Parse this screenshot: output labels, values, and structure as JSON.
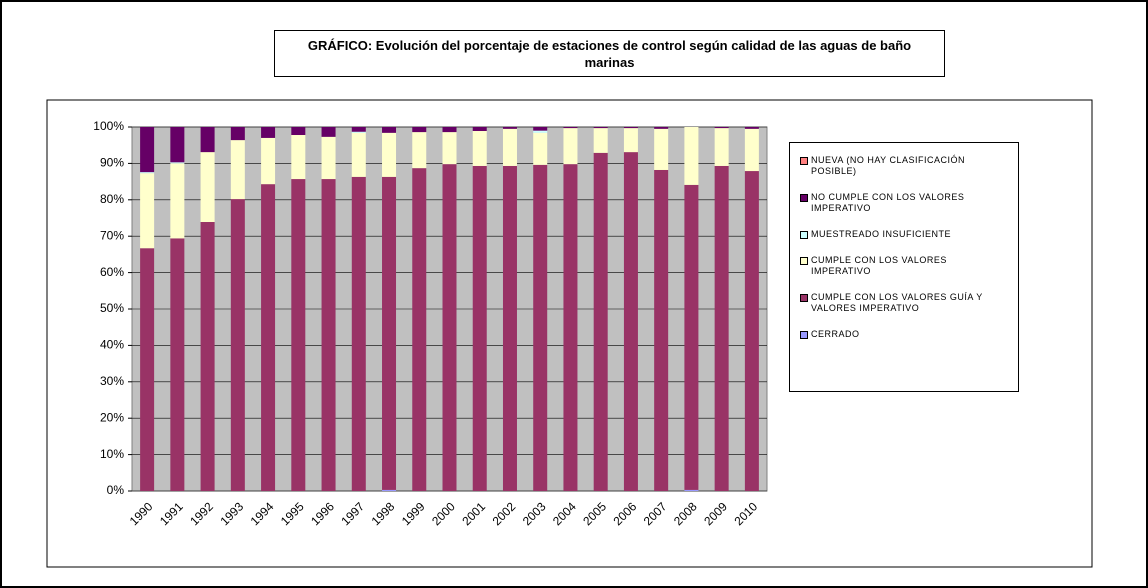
{
  "chart_data": {
    "type": "stacked_bar",
    "title": "GRÁFICO: Evolución del porcentaje de estaciones de control según calidad de las aguas de baño marinas",
    "categories": [
      "1990",
      "1991",
      "1992",
      "1993",
      "1994",
      "1995",
      "1996",
      "1997",
      "1998",
      "1999",
      "2000",
      "2001",
      "2002",
      "2003",
      "2004",
      "2005",
      "2006",
      "2007",
      "2008",
      "2009",
      "2010"
    ],
    "series": [
      {
        "name": "CERRADO",
        "color": "#9999ff",
        "values": [
          0,
          0,
          0,
          0,
          0,
          0,
          0,
          0,
          0.3,
          0,
          0,
          0,
          0,
          0,
          0,
          0,
          0,
          0,
          0.3,
          0,
          0
        ]
      },
      {
        "name": "CUMPLE CON LOS VALORES GUÍA Y VALORES IMPERATIVO",
        "color": "#993366",
        "values": [
          66.7,
          69.4,
          73.9,
          80.2,
          84.3,
          85.7,
          85.7,
          86.3,
          86,
          88.7,
          89.8,
          89.3,
          89.3,
          89.6,
          89.8,
          92.9,
          93.1,
          88.2,
          83.8,
          89.3,
          87.9
        ]
      },
      {
        "name": "CUMPLE CON LOS VALORES IMPERATIVO",
        "color": "#ffffcc",
        "values": [
          20.6,
          20.6,
          19.2,
          16.2,
          12.7,
          12.1,
          11.6,
          12.1,
          12.1,
          9.9,
          8.8,
          9.6,
          10.2,
          8.8,
          9.9,
          6.8,
          6.6,
          11.3,
          15.9,
          10.4,
          11.6
        ]
      },
      {
        "name": "MUESTREADO INSUFICIENTE",
        "color": "#ccffff",
        "values": [
          0.3,
          0.3,
          0,
          0,
          0,
          0,
          0,
          0.3,
          0,
          0,
          0,
          0,
          0,
          0.6,
          0,
          0,
          0,
          0,
          0,
          0,
          0
        ]
      },
      {
        "name": "NO CUMPLE CON LOS VALORES IMPERATIVO",
        "color": "#660066",
        "values": [
          12.4,
          9.7,
          6.9,
          3.6,
          3,
          2.2,
          2.7,
          1.3,
          1.6,
          1.4,
          1.4,
          1.1,
          0.5,
          1,
          0.3,
          0.3,
          0.3,
          0.5,
          0,
          0.3,
          0.5
        ]
      },
      {
        "name": "NUEVA (NO HAY CLASIFICACIÓN POSIBLE)",
        "color": "#ff8080",
        "values": [
          0,
          0,
          0,
          0,
          0,
          0,
          0,
          0,
          0,
          0,
          0,
          0,
          0,
          0,
          0,
          0,
          0,
          0,
          0,
          0,
          0
        ]
      }
    ],
    "ylim": [
      0,
      100
    ],
    "yticks": [
      {
        "value": 0,
        "label": "0%"
      },
      {
        "value": 10,
        "label": "10%"
      },
      {
        "value": 20,
        "label": "20%"
      },
      {
        "value": 30,
        "label": "30%"
      },
      {
        "value": 40,
        "label": "40%"
      },
      {
        "value": 50,
        "label": "50%"
      },
      {
        "value": 60,
        "label": "60%"
      },
      {
        "value": 70,
        "label": "70%"
      },
      {
        "value": 80,
        "label": "80%"
      },
      {
        "value": 90,
        "label": "90%"
      },
      {
        "value": 100,
        "label": "100%"
      }
    ],
    "grid": true,
    "legend": "right"
  }
}
